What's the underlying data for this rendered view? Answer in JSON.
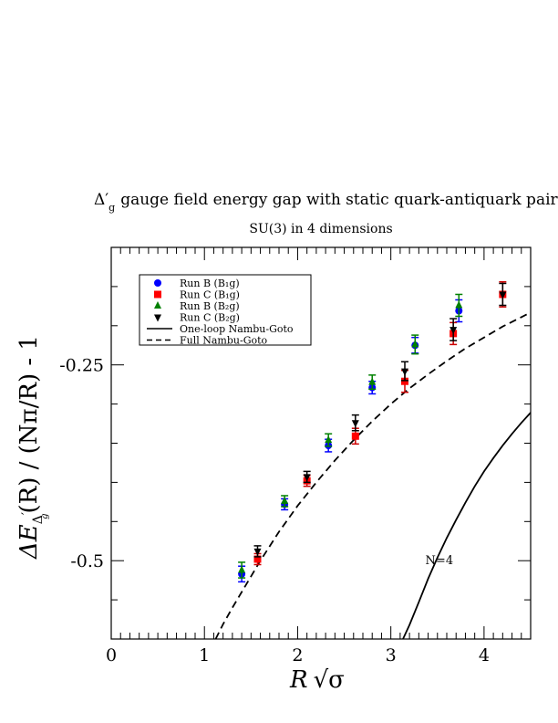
{
  "chart_data": {
    "type": "scatter",
    "title_symbol": "Δ′",
    "title_subscript": "g",
    "title_text": "gauge field energy gap with static quark-antiquark pair",
    "subtitle": "SU(3) in 4 dimensions",
    "xlabel_main": "R",
    "xlabel_radical": "√σ",
    "ylabel_prefix": "ΔE",
    "ylabel_sub1": "Δ",
    "ylabel_sub1_prime": "′",
    "ylabel_sub2": "g",
    "ylabel_suffix": "(R) / (Nπ/R) - 1",
    "xlim": [
      0,
      4.5
    ],
    "ylim": [
      -0.6,
      -0.1
    ],
    "xticks": [
      0,
      1,
      2,
      3,
      4
    ],
    "xtick_labels": [
      "0",
      "1",
      "2",
      "3",
      "4"
    ],
    "yticks": [
      -0.25,
      -0.5
    ],
    "ytick_labels": [
      "-0.25",
      "-0.5"
    ],
    "legend_position": "top-left",
    "series": [
      {
        "name": "Run B (B₁g)",
        "marker": "circle",
        "color": "#0000ff",
        "errcolor": "#0000ff",
        "points": [
          {
            "x": 1.4,
            "y": -0.517,
            "err": 0.01
          },
          {
            "x": 1.86,
            "y": -0.428,
            "err": 0.007
          },
          {
            "x": 2.33,
            "y": -0.353,
            "err": 0.008
          },
          {
            "x": 2.8,
            "y": -0.279,
            "err": 0.008
          },
          {
            "x": 3.26,
            "y": -0.225,
            "err": 0.01
          },
          {
            "x": 3.73,
            "y": -0.181,
            "err": 0.014
          }
        ]
      },
      {
        "name": "Run C (B₁g)",
        "marker": "square",
        "color": "#ff0000",
        "errcolor": "#cc0000",
        "points": [
          {
            "x": 1.57,
            "y": -0.498,
            "err": 0.007
          },
          {
            "x": 2.1,
            "y": -0.398,
            "err": 0.007
          },
          {
            "x": 2.62,
            "y": -0.341,
            "err": 0.01
          },
          {
            "x": 3.15,
            "y": -0.271,
            "err": 0.014
          },
          {
            "x": 3.67,
            "y": -0.21,
            "err": 0.014
          },
          {
            "x": 4.2,
            "y": -0.16,
            "err": 0.016
          }
        ]
      },
      {
        "name": "Run B (B₂g)",
        "marker": "triangle-up",
        "color": "#008000",
        "errcolor": "#008000",
        "points": [
          {
            "x": 1.4,
            "y": -0.512,
            "err": 0.01
          },
          {
            "x": 1.86,
            "y": -0.424,
            "err": 0.007
          },
          {
            "x": 2.33,
            "y": -0.346,
            "err": 0.008
          },
          {
            "x": 2.8,
            "y": -0.272,
            "err": 0.009
          },
          {
            "x": 3.26,
            "y": -0.224,
            "err": 0.012
          },
          {
            "x": 3.73,
            "y": -0.174,
            "err": 0.014
          }
        ]
      },
      {
        "name": "Run C (B₂g)",
        "marker": "triangle-down",
        "color": "#000000",
        "errcolor": "#000000",
        "points": [
          {
            "x": 1.57,
            "y": -0.488,
            "err": 0.007
          },
          {
            "x": 2.1,
            "y": -0.393,
            "err": 0.007
          },
          {
            "x": 2.62,
            "y": -0.324,
            "err": 0.01
          },
          {
            "x": 3.15,
            "y": -0.258,
            "err": 0.012
          },
          {
            "x": 3.67,
            "y": -0.205,
            "err": 0.014
          },
          {
            "x": 4.2,
            "y": -0.16,
            "err": 0.014
          }
        ]
      }
    ],
    "curves": [
      {
        "name": "One-loop Nambu-Goto",
        "style": "solid",
        "color": "#000000",
        "x": [
          3.13,
          3.2,
          3.3,
          3.4,
          3.5,
          3.6,
          3.7,
          3.8,
          3.9,
          4.0,
          4.1,
          4.2,
          4.3,
          4.4,
          4.5
        ],
        "y": [
          -0.6,
          -0.582,
          -0.553,
          -0.523,
          -0.496,
          -0.471,
          -0.448,
          -0.426,
          -0.405,
          -0.386,
          -0.369,
          -0.353,
          -0.338,
          -0.324,
          -0.311
        ]
      },
      {
        "name": "Full Nambu-Goto",
        "style": "dashed",
        "color": "#000000",
        "x": [
          1.12,
          1.2,
          1.3,
          1.4,
          1.5,
          1.6,
          1.8,
          2.0,
          2.2,
          2.4,
          2.6,
          2.8,
          3.0,
          3.2,
          3.4,
          3.6,
          3.8,
          4.0,
          4.2,
          4.4,
          4.5
        ],
        "y": [
          -0.6,
          -0.581,
          -0.56,
          -0.54,
          -0.52,
          -0.5,
          -0.463,
          -0.43,
          -0.4,
          -0.372,
          -0.346,
          -0.322,
          -0.3,
          -0.28,
          -0.262,
          -0.245,
          -0.229,
          -0.215,
          -0.201,
          -0.189,
          -0.183
        ]
      }
    ],
    "annotations": [
      {
        "text": "N=4",
        "x": 3.52,
        "y": -0.5
      }
    ]
  }
}
